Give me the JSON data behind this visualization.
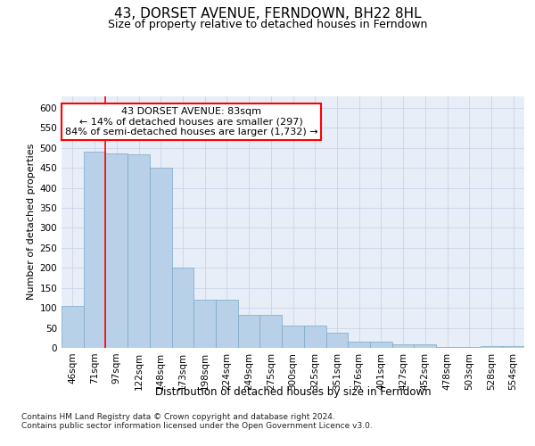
{
  "title": "43, DORSET AVENUE, FERNDOWN, BH22 8HL",
  "subtitle": "Size of property relative to detached houses in Ferndown",
  "xlabel": "Distribution of detached houses by size in Ferndown",
  "ylabel": "Number of detached properties",
  "categories": [
    "46sqm",
    "71sqm",
    "97sqm",
    "122sqm",
    "148sqm",
    "173sqm",
    "198sqm",
    "224sqm",
    "249sqm",
    "275sqm",
    "300sqm",
    "325sqm",
    "351sqm",
    "376sqm",
    "401sqm",
    "427sqm",
    "452sqm",
    "478sqm",
    "503sqm",
    "528sqm",
    "554sqm"
  ],
  "bar_values": [
    105,
    490,
    487,
    483,
    450,
    200,
    120,
    120,
    83,
    83,
    55,
    55,
    37,
    15,
    15,
    8,
    8,
    2,
    2,
    5,
    5
  ],
  "bar_color": "#b8d0e8",
  "bar_edge_color": "#7aaac8",
  "red_line_x": 1.5,
  "annotation_line1": "43 DORSET AVENUE: 83sqm",
  "annotation_line2": "← 14% of detached houses are smaller (297)",
  "annotation_line3": "84% of semi-detached houses are larger (1,732) →",
  "annotation_box_color": "white",
  "annotation_box_edge_color": "red",
  "footnote": "Contains HM Land Registry data © Crown copyright and database right 2024.\nContains public sector information licensed under the Open Government Licence v3.0.",
  "ylim_max": 630,
  "yticks": [
    0,
    50,
    100,
    150,
    200,
    250,
    300,
    350,
    400,
    450,
    500,
    550,
    600
  ],
  "grid_color": "#c8d4e8",
  "plot_bg_color": "#e8eef8",
  "fig_bg_color": "#ffffff",
  "title_fontsize": 11,
  "subtitle_fontsize": 9,
  "ylabel_fontsize": 8,
  "xlabel_fontsize": 8.5,
  "tick_fontsize": 7.5,
  "annotation_fontsize": 8,
  "footnote_fontsize": 6.5
}
